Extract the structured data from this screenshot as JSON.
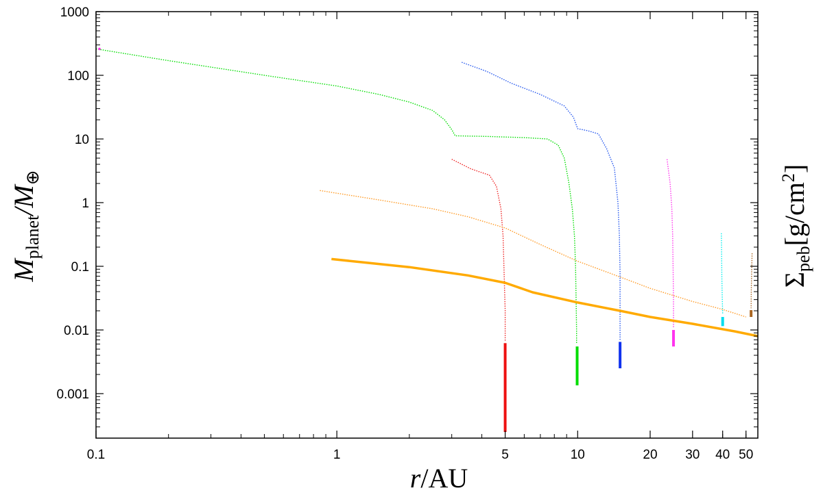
{
  "chart_data": {
    "type": "line",
    "title": "",
    "xlabel": {
      "var": "r",
      "unit": "/AU"
    },
    "ylabel": {
      "var": "M",
      "sub": "planet",
      "mid": "/M",
      "sub2": "⊕"
    },
    "y2label": {
      "var": "Σ",
      "sub": "peb",
      "unit": "[g/cm",
      "sup": "2",
      "close": "]"
    },
    "xscale": "log",
    "yscale": "log",
    "xlim": [
      0.1,
      56
    ],
    "ylim": [
      0.0002,
      1000
    ],
    "grid": false,
    "legend": "none",
    "x_ticks": [
      {
        "value": 0.1,
        "label": "0.1"
      },
      {
        "value": 1,
        "label": "1"
      },
      {
        "value": 5,
        "label": "5"
      },
      {
        "value": 10,
        "label": "10"
      },
      {
        "value": 20,
        "label": "20"
      },
      {
        "value": 30,
        "label": "30"
      },
      {
        "value": 40,
        "label": "40"
      },
      {
        "value": 50,
        "label": "50"
      }
    ],
    "x_minor_ticks": [
      0.2,
      0.3,
      0.4,
      0.5,
      0.6,
      0.7,
      0.8,
      0.9,
      2,
      3,
      4,
      6,
      7,
      8,
      9
    ],
    "y_ticks": [
      {
        "value": 0.001,
        "label": "0.001"
      },
      {
        "value": 0.01,
        "label": "0.01"
      },
      {
        "value": 0.1,
        "label": "0.1"
      },
      {
        "value": 1,
        "label": "1"
      },
      {
        "value": 10,
        "label": "10"
      },
      {
        "value": 100,
        "label": "100"
      },
      {
        "value": 1000,
        "label": "1000"
      }
    ],
    "series": [
      {
        "color": "#00dd00",
        "style": "dotted",
        "points": [
          [
            0.1,
            260
          ],
          [
            0.2,
            170
          ],
          [
            0.5,
            100
          ],
          [
            1,
            68
          ],
          [
            1.5,
            50
          ],
          [
            2,
            38
          ],
          [
            2.5,
            28
          ],
          [
            2.8,
            20
          ],
          [
            3.0,
            14
          ],
          [
            3.1,
            11.2
          ],
          [
            4,
            11
          ],
          [
            6,
            10.5
          ],
          [
            7.5,
            10
          ],
          [
            8.3,
            8
          ],
          [
            8.8,
            5
          ],
          [
            9.2,
            2
          ],
          [
            9.5,
            0.8
          ],
          [
            9.7,
            0.3
          ],
          [
            9.8,
            0.1
          ],
          [
            9.85,
            0.03
          ],
          [
            9.9,
            0.01
          ],
          [
            9.9,
            0.006
          ]
        ]
      },
      {
        "color": "#2255ee",
        "style": "dotted",
        "points": [
          [
            3.3,
            160
          ],
          [
            4.2,
            115
          ],
          [
            5.3,
            75
          ],
          [
            7,
            50
          ],
          [
            8.8,
            33
          ],
          [
            9.6,
            22
          ],
          [
            10,
            14.5
          ],
          [
            11,
            13.5
          ],
          [
            12.2,
            12
          ],
          [
            13.2,
            7
          ],
          [
            14.2,
            3.5
          ],
          [
            14.7,
            1
          ],
          [
            14.9,
            0.3
          ],
          [
            15,
            0.08
          ],
          [
            15,
            0.01
          ],
          [
            15,
            0.007
          ]
        ]
      },
      {
        "color": "#ee2222",
        "style": "dotted",
        "points": [
          [
            3.0,
            4.8
          ],
          [
            3.6,
            3.4
          ],
          [
            4.3,
            2.7
          ],
          [
            4.6,
            1.8
          ],
          [
            4.8,
            0.8
          ],
          [
            4.9,
            0.3
          ],
          [
            4.95,
            0.08
          ],
          [
            5,
            0.02
          ],
          [
            5,
            0.0065
          ]
        ]
      },
      {
        "color": "#ff33ee",
        "style": "dotted",
        "points": [
          [
            23.5,
            4.8
          ],
          [
            24.2,
            2
          ],
          [
            24.6,
            0.8
          ],
          [
            24.8,
            0.3
          ],
          [
            24.9,
            0.1
          ],
          [
            25,
            0.03
          ],
          [
            25,
            0.011
          ]
        ]
      },
      {
        "color": "#00eeee",
        "style": "dotted",
        "points": [
          [
            39.5,
            0.33
          ],
          [
            39.6,
            0.15
          ],
          [
            39.7,
            0.07
          ],
          [
            39.8,
            0.04
          ],
          [
            40,
            0.018
          ]
        ]
      },
      {
        "color": "#aa6622",
        "style": "dotted",
        "points": [
          [
            53,
            0.16
          ],
          [
            52.8,
            0.08
          ],
          [
            52.6,
            0.04
          ],
          [
            52.5,
            0.022
          ]
        ]
      },
      {
        "color": "#ff9922",
        "style": "dotted",
        "points": [
          [
            0.85,
            1.55
          ],
          [
            1.5,
            1.1
          ],
          [
            2.5,
            0.8
          ],
          [
            3.5,
            0.6
          ],
          [
            5,
            0.4
          ],
          [
            7,
            0.22
          ],
          [
            10,
            0.12
          ],
          [
            15,
            0.068
          ],
          [
            20,
            0.045
          ],
          [
            30,
            0.028
          ],
          [
            40,
            0.021
          ],
          [
            50,
            0.016
          ]
        ]
      },
      {
        "color": "#ffaa00",
        "style": "solid",
        "points": [
          [
            0.95,
            0.13
          ],
          [
            2,
            0.097
          ],
          [
            3.5,
            0.072
          ],
          [
            5,
            0.055
          ],
          [
            6.5,
            0.039
          ],
          [
            10,
            0.027
          ],
          [
            15,
            0.02
          ],
          [
            20,
            0.016
          ],
          [
            30,
            0.0125
          ],
          [
            45,
            0.0095
          ],
          [
            56,
            0.008
          ]
        ]
      }
    ],
    "pebble_bars": [
      {
        "x": 5,
        "y_low": 0.00025,
        "y_high": 0.0062,
        "color": "#ee1111"
      },
      {
        "x": 9.95,
        "y_low": 0.00135,
        "y_high": 0.0055,
        "color": "#00dd00"
      },
      {
        "x": 15,
        "y_low": 0.0025,
        "y_high": 0.0065,
        "color": "#1133ee"
      },
      {
        "x": 25,
        "y_low": 0.0055,
        "y_high": 0.01,
        "color": "#ff33ee"
      },
      {
        "x": 40,
        "y_low": 0.0115,
        "y_high": 0.016,
        "color": "#00ddee"
      },
      {
        "x": 52.5,
        "y_low": 0.016,
        "y_high": 0.0205,
        "color": "#aa6622"
      }
    ],
    "markers": [
      {
        "x": 0.1,
        "y": 260,
        "color": "#ff33ee"
      }
    ]
  }
}
